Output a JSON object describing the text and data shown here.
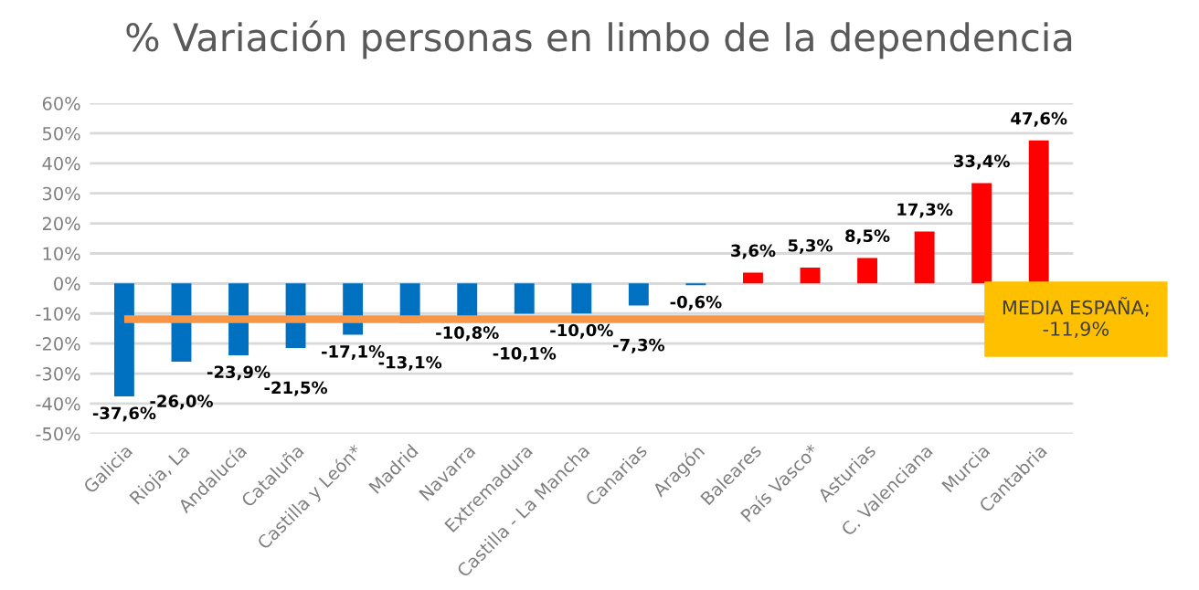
{
  "chart_data": {
    "type": "bar",
    "title": "% Variación personas en limbo de la dependencia",
    "categories": [
      "Galicia",
      "Rioja, La",
      "Andalucía",
      "Cataluña",
      "Castilla y León*",
      "Madrid",
      "Navarra",
      "Extremadura",
      "Castilla - La Mancha",
      "Canarias",
      "Aragón",
      "Baleares",
      "País Vasco*",
      "Asturias",
      "C. Valenciana",
      "Murcia",
      "Cantabria"
    ],
    "values": [
      -37.6,
      -26.0,
      -23.9,
      -21.5,
      -17.1,
      -13.1,
      -10.8,
      -10.1,
      -10.0,
      -7.3,
      -0.6,
      3.6,
      5.3,
      8.5,
      17.3,
      33.4,
      47.6
    ],
    "colors": [
      "#0070c0",
      "#0070c0",
      "#0070c0",
      "#0070c0",
      "#0070c0",
      "#0070c0",
      "#0070c0",
      "#0070c0",
      "#0070c0",
      "#0070c0",
      "#0070c0",
      "#ff0000",
      "#ff0000",
      "#ff0000",
      "#ff0000",
      "#ff0000",
      "#ff0000"
    ],
    "value_labels": [
      "-37,6%",
      "-26,0%",
      "-23,9%",
      "-21,5%",
      "-17,1%",
      "-13,1%",
      "-10,8%",
      "-10,1%",
      "-10,0%",
      "-7,3%",
      "-0,6%",
      "3,6%",
      "5,3%",
      "8,5%",
      "17,3%",
      "33,4%",
      "47,6%"
    ],
    "ylim": [
      -50,
      60
    ],
    "yticks": [
      {
        "value": -50,
        "label": "-50%"
      },
      {
        "value": -40,
        "label": "-40%"
      },
      {
        "value": -30,
        "label": "-30%"
      },
      {
        "value": -20,
        "label": "-20%"
      },
      {
        "value": -10,
        "label": "-10%"
      },
      {
        "value": 0,
        "label": "0%"
      },
      {
        "value": 10,
        "label": "10%"
      },
      {
        "value": 20,
        "label": "20%"
      },
      {
        "value": 30,
        "label": "30%"
      },
      {
        "value": 40,
        "label": "40%"
      },
      {
        "value": 50,
        "label": "50%"
      },
      {
        "value": 60,
        "label": "60%"
      }
    ],
    "ref_lines": [
      {
        "axis": "y",
        "value": -11.9,
        "label": "MEDIA ESPAÑA;\n-11,9%",
        "color": "#f79646",
        "line_style": "solid"
      }
    ],
    "grid": "y",
    "legend": false
  }
}
